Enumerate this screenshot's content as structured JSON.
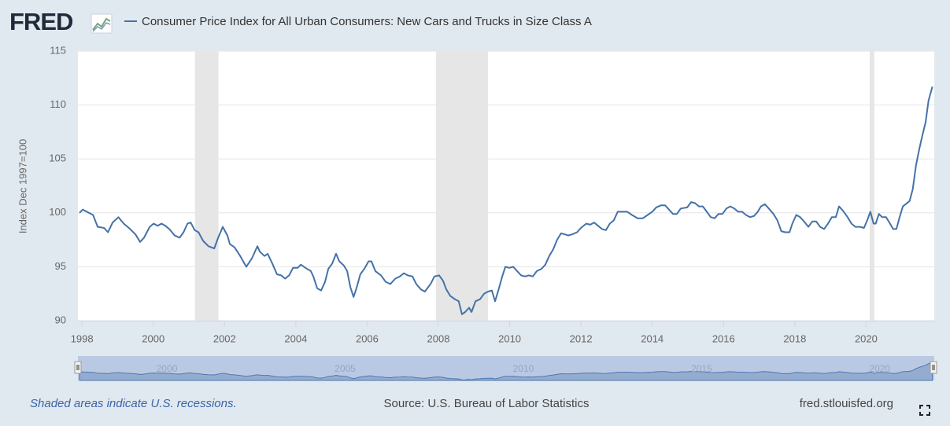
{
  "logo": "FRED",
  "chart_data": {
    "type": "line",
    "title": "Consumer Price Index for All Urban Consumers: New Cars and Trucks in Size Class A",
    "y_label": "Index Dec 1997=100",
    "color": "#4572a7",
    "recession_color": "#e6e6e6",
    "recessions": [
      [
        2001.17,
        2001.83
      ],
      [
        2007.93,
        2009.39
      ],
      [
        2020.1,
        2020.23
      ]
    ],
    "xlim": [
      1997.93,
      2021.89
    ],
    "xticks": [
      1998,
      2000,
      2002,
      2004,
      2006,
      2008,
      2010,
      2012,
      2014,
      2016,
      2018,
      2020
    ],
    "ylim": [
      90,
      115
    ],
    "yticks": [
      90,
      95,
      100,
      105,
      110,
      115
    ],
    "grid": true,
    "navigator_ticks": [
      2000,
      2005,
      2010,
      2015,
      2020
    ],
    "x": [
      1997.93,
      1998.02,
      1998.31,
      1998.44,
      1998.62,
      1998.73,
      1998.86,
      1999.02,
      1999.17,
      1999.35,
      1999.5,
      1999.63,
      1999.74,
      1999.9,
      2000.01,
      2000.12,
      2000.23,
      2000.34,
      2000.45,
      2000.6,
      2000.74,
      2000.85,
      2000.96,
      2001.05,
      2001.16,
      2001.27,
      2001.4,
      2001.55,
      2001.71,
      2001.82,
      2001.95,
      2002.08,
      2002.15,
      2002.28,
      2002.44,
      2002.61,
      2002.77,
      2002.92,
      2002.99,
      2003.12,
      2003.21,
      2003.34,
      2003.47,
      2003.59,
      2003.7,
      2003.81,
      2003.92,
      2004.05,
      2004.14,
      2004.27,
      2004.42,
      2004.49,
      2004.6,
      2004.71,
      2004.82,
      2004.91,
      2005.02,
      2005.13,
      2005.22,
      2005.35,
      2005.44,
      2005.53,
      2005.62,
      2005.7,
      2005.81,
      2005.92,
      2006.04,
      2006.12,
      2006.23,
      2006.39,
      2006.52,
      2006.65,
      2006.79,
      2006.92,
      2007.03,
      2007.14,
      2007.27,
      2007.38,
      2007.51,
      2007.62,
      2007.78,
      2007.89,
      2008.02,
      2008.13,
      2008.22,
      2008.33,
      2008.46,
      2008.57,
      2008.66,
      2008.75,
      2008.86,
      2008.93,
      2009.04,
      2009.17,
      2009.28,
      2009.39,
      2009.5,
      2009.59,
      2009.68,
      2009.79,
      2009.88,
      2009.99,
      2010.1,
      2010.21,
      2010.32,
      2010.43,
      2010.54,
      2010.65,
      2010.76,
      2010.89,
      2011.0,
      2011.11,
      2011.22,
      2011.33,
      2011.44,
      2011.55,
      2011.64,
      2011.75,
      2011.89,
      2012.0,
      2012.15,
      2012.26,
      2012.37,
      2012.48,
      2012.59,
      2012.7,
      2012.81,
      2012.92,
      2013.03,
      2013.19,
      2013.3,
      2013.43,
      2013.59,
      2013.74,
      2013.87,
      2014.0,
      2014.11,
      2014.25,
      2014.36,
      2014.47,
      2014.58,
      2014.69,
      2014.8,
      2014.98,
      2015.09,
      2015.2,
      2015.31,
      2015.42,
      2015.53,
      2015.64,
      2015.75,
      2015.86,
      2015.97,
      2016.08,
      2016.19,
      2016.3,
      2016.41,
      2016.52,
      2016.63,
      2016.74,
      2016.85,
      2016.96,
      2017.05,
      2017.16,
      2017.27,
      2017.4,
      2017.51,
      2017.62,
      2017.73,
      2017.85,
      2017.93,
      2018.04,
      2018.15,
      2018.26,
      2018.38,
      2018.49,
      2018.6,
      2018.71,
      2018.82,
      2018.93,
      2019.04,
      2019.15,
      2019.24,
      2019.35,
      2019.48,
      2019.59,
      2019.7,
      2019.83,
      2019.94,
      2020.03,
      2020.12,
      2020.21,
      2020.27,
      2020.36,
      2020.45,
      2020.56,
      2020.67,
      2020.76,
      2020.85,
      2020.94,
      2021.03,
      2021.11,
      2021.22,
      2021.31,
      2021.4,
      2021.49,
      2021.58,
      2021.67,
      2021.75,
      2021.86
    ],
    "values": [
      100.0,
      100.3,
      99.8,
      98.7,
      98.6,
      98.2,
      99.1,
      99.6,
      99.0,
      98.5,
      98.0,
      97.3,
      97.7,
      98.7,
      99.0,
      98.8,
      99.0,
      98.8,
      98.5,
      97.9,
      97.7,
      98.2,
      99.0,
      99.1,
      98.4,
      98.2,
      97.4,
      96.9,
      96.7,
      97.7,
      98.7,
      97.9,
      97.1,
      96.8,
      96.0,
      95.0,
      95.8,
      96.9,
      96.4,
      96.0,
      96.2,
      95.3,
      94.3,
      94.2,
      93.9,
      94.2,
      94.9,
      94.9,
      95.2,
      94.9,
      94.6,
      94.1,
      93.0,
      92.8,
      93.6,
      94.8,
      95.3,
      96.2,
      95.5,
      95.1,
      94.6,
      93.1,
      92.2,
      93.0,
      94.3,
      94.8,
      95.5,
      95.5,
      94.6,
      94.2,
      93.6,
      93.4,
      93.9,
      94.1,
      94.4,
      94.2,
      94.1,
      93.4,
      92.9,
      92.7,
      93.4,
      94.1,
      94.2,
      93.7,
      92.9,
      92.3,
      92.0,
      91.8,
      90.6,
      90.8,
      91.2,
      90.8,
      91.8,
      92.0,
      92.5,
      92.7,
      92.8,
      91.8,
      92.8,
      94.1,
      95.0,
      94.9,
      95.0,
      94.6,
      94.2,
      94.1,
      94.2,
      94.1,
      94.6,
      94.8,
      95.2,
      96.0,
      96.6,
      97.5,
      98.1,
      98.0,
      97.9,
      98.0,
      98.2,
      98.6,
      99.0,
      98.9,
      99.1,
      98.8,
      98.5,
      98.4,
      99.0,
      99.3,
      100.1,
      100.1,
      100.1,
      99.8,
      99.5,
      99.5,
      99.8,
      100.1,
      100.5,
      100.7,
      100.7,
      100.3,
      99.9,
      99.9,
      100.4,
      100.5,
      101.0,
      100.9,
      100.6,
      100.6,
      100.1,
      99.6,
      99.5,
      99.9,
      99.9,
      100.4,
      100.6,
      100.4,
      100.1,
      100.1,
      99.8,
      99.6,
      99.7,
      100.1,
      100.6,
      100.8,
      100.4,
      99.9,
      99.3,
      98.3,
      98.2,
      98.2,
      99.0,
      99.8,
      99.6,
      99.2,
      98.7,
      99.2,
      99.2,
      98.7,
      98.5,
      99.0,
      99.6,
      99.6,
      100.6,
      100.2,
      99.6,
      99.0,
      98.7,
      98.7,
      98.6,
      99.3,
      100.1,
      99.0,
      99.0,
      99.9,
      99.6,
      99.6,
      99.0,
      98.5,
      98.5,
      99.6,
      100.6,
      100.8,
      101.1,
      102.2,
      104.4,
      105.9,
      107.2,
      108.4,
      110.4,
      111.7
    ]
  },
  "footer": {
    "recession_note": "Shaded areas indicate U.S. recessions.",
    "source": "Source: U.S. Bureau of Labor Statistics",
    "site": "fred.stlouisfed.org"
  }
}
